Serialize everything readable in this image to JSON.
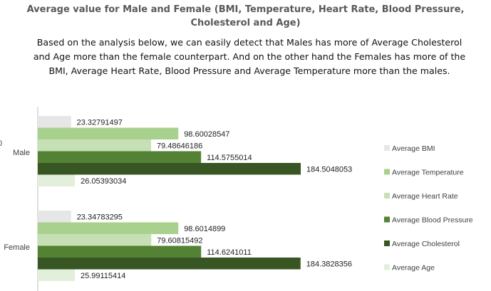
{
  "title_lines": [
    "Average value for Male and Female (BMI, Temperature, Heart Rate, Blood Pressure,",
    "Cholesterol and Age)"
  ],
  "description_lines": [
    "Based on the analysis below, we can easily detect that Males has more of Average Cholesterol",
    "and Age more than the female counterpart. And on the other hand the Females has more of the",
    "BMI, Average Heart Rate, Blood Pressure and Average Temperature more than the males."
  ],
  "edge_glyph": "0",
  "chart_data": {
    "type": "bar",
    "orientation": "horizontal",
    "categories": [
      "Male",
      "Female"
    ],
    "series": [
      {
        "name": "Average BMI",
        "color": "#e6e6e6",
        "values": [
          23.32791497,
          23.34783295
        ],
        "labels": [
          "23.32791497",
          "23.34783295"
        ]
      },
      {
        "name": "Average Temperature",
        "color": "#a9d18e",
        "values": [
          98.60028547,
          98.6014899
        ],
        "labels": [
          "98.60028547",
          "98.6014899"
        ]
      },
      {
        "name": "Average Heart Rate",
        "color": "#c5e0b4",
        "values": [
          79.48646186,
          79.60815492
        ],
        "labels": [
          "79.48646186",
          "79.60815492"
        ]
      },
      {
        "name": "Average Blood Pressure",
        "color": "#548235",
        "values": [
          114.5755014,
          114.6241011
        ],
        "labels": [
          "114.5755014",
          "114.6241011"
        ]
      },
      {
        "name": "Average Cholesterol",
        "color": "#375623",
        "values": [
          184.5048053,
          184.3828356
        ],
        "labels": [
          "184.5048053",
          "184.3828356"
        ]
      },
      {
        "name": "Average Age",
        "color": "#e2efda",
        "values": [
          26.05393034,
          25.99115414
        ],
        "labels": [
          "26.05393034",
          "25.99115414"
        ]
      }
    ],
    "legend": "right",
    "grid": false
  }
}
